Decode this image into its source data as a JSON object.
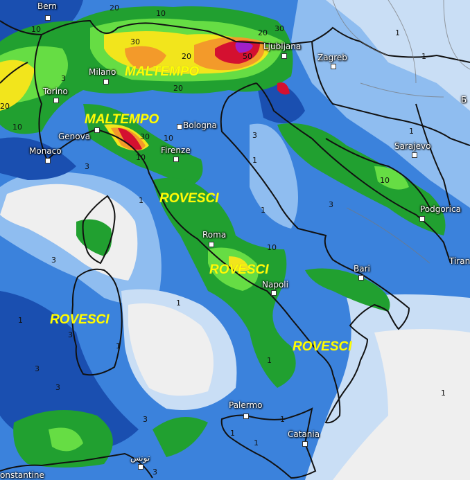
{
  "map": {
    "type": "precipitation forecast map",
    "colors": {
      "none": "#efefef",
      "very_light": "#c9def5",
      "light": "#8fbdf0",
      "medium": "#3b82dc",
      "dark_blue": "#1a4fb0",
      "green": "#21a030",
      "light_green": "#66dd44",
      "yellow": "#f2e51c",
      "orange": "#f39a2a",
      "red": "#d41030",
      "purple": "#a020c8"
    },
    "cities": [
      {
        "name": "Bern"
      },
      {
        "name": "Milano"
      },
      {
        "name": "Torino"
      },
      {
        "name": "Genova"
      },
      {
        "name": "Bologna"
      },
      {
        "name": "Firenze"
      },
      {
        "name": "Monaco"
      },
      {
        "name": "Ljubljana"
      },
      {
        "name": "Zagreb"
      },
      {
        "name": "Sarajevo"
      },
      {
        "name": "Podgorica"
      },
      {
        "name": "Roma"
      },
      {
        "name": "Napoli"
      },
      {
        "name": "Bari"
      },
      {
        "name": "Tiran"
      },
      {
        "name": "Palermo"
      },
      {
        "name": "Catania"
      },
      {
        "name": "تونس"
      },
      {
        "name": "onstantine"
      },
      {
        "name": "Б"
      }
    ],
    "annotations": [
      "MALTEMPO",
      "MALTEMPO",
      "ROVESCI",
      "ROVESCI",
      "ROVESCI",
      "ROVESCI"
    ],
    "contour_labels": [
      "20",
      "10",
      "10",
      "30",
      "20",
      "50",
      "30",
      "20",
      "20",
      "3",
      "20",
      "10",
      "30",
      "10",
      "10",
      "3",
      "1",
      "1",
      "1",
      "1",
      "3",
      "10",
      "10",
      "1",
      "3",
      "1",
      "1",
      "3",
      "3",
      "1",
      "3",
      "3",
      "1",
      "1",
      "1",
      "3",
      "1",
      "1",
      "3",
      "1"
    ]
  }
}
